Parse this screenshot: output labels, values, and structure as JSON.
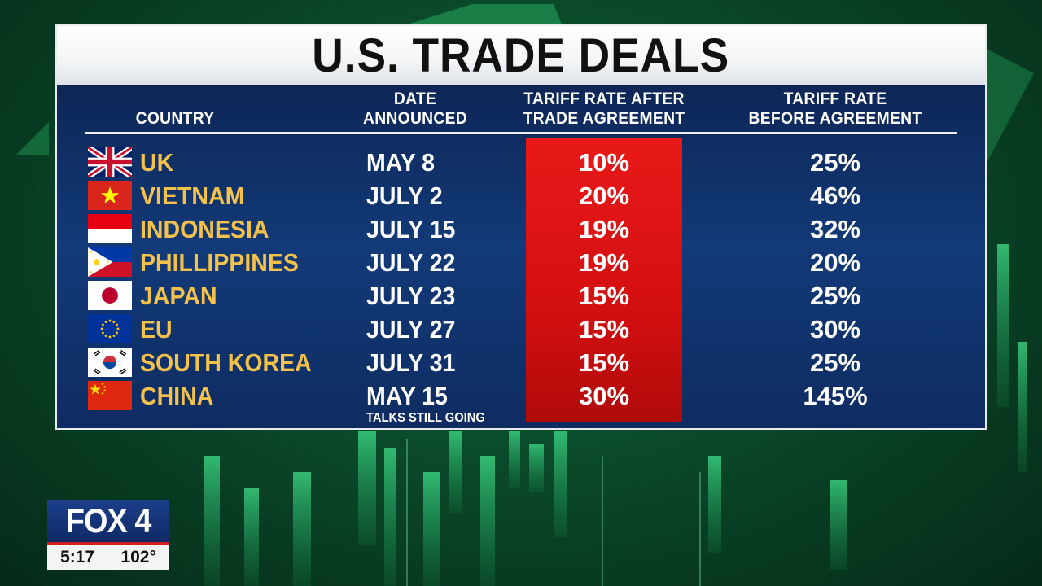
{
  "title": "U.S. TRADE DEALS",
  "headers": {
    "country": "COUNTRY",
    "date_line1": "DATE",
    "date_line2": "ANNOUNCED",
    "after_line1": "TARIFF RATE AFTER",
    "after_line2": "TRADE AGREEMENT",
    "before_line1": "TARIFF RATE",
    "before_line2": "BEFORE AGREEMENT"
  },
  "rows": [
    {
      "flag": "uk-flag-icon",
      "country": "UK",
      "date": "MAY 8",
      "after": "10%",
      "before": "25%"
    },
    {
      "flag": "vietnam-flag-icon",
      "country": "VIETNAM",
      "date": "JULY 2",
      "after": "20%",
      "before": "46%"
    },
    {
      "flag": "indonesia-flag-icon",
      "country": "INDONESIA",
      "date": "JULY 15",
      "after": "19%",
      "before": "32%"
    },
    {
      "flag": "philippines-flag-icon",
      "country": "PHILLIPPINES",
      "date": "JULY 22",
      "after": "19%",
      "before": "20%"
    },
    {
      "flag": "japan-flag-icon",
      "country": "JAPAN",
      "date": "JULY 23",
      "after": "15%",
      "before": "25%"
    },
    {
      "flag": "eu-flag-icon",
      "country": "EU",
      "date": "JULY 27",
      "after": "15%",
      "before": "30%"
    },
    {
      "flag": "south-korea-flag-icon",
      "country": "SOUTH KOREA",
      "date": "JULY 31",
      "after": "15%",
      "before": "25%"
    },
    {
      "flag": "china-flag-icon",
      "country": "CHINA",
      "date": "MAY 15",
      "note": "TALKS STILL GOING",
      "after": "30%",
      "before": "145%"
    }
  ],
  "station": {
    "logo": "FOX 4",
    "time": "5:17",
    "temperature": "102°"
  },
  "colors": {
    "highlight_column": "#d40f10",
    "country_text": "#f4c24a",
    "panel_bg": "#123a78"
  }
}
